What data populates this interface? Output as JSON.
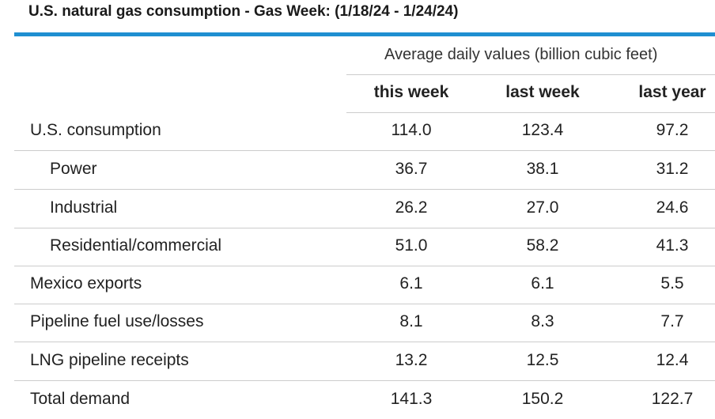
{
  "title": "U.S. natural gas consumption - Gas Week: (1/18/24 - 1/24/24)",
  "units_label": "Average daily values (billion cubic feet)",
  "columns": [
    "this week",
    "last week",
    "last year"
  ],
  "rows": [
    {
      "label": "U.S. consumption",
      "indent": false,
      "values": [
        "114.0",
        "123.4",
        "97.2"
      ]
    },
    {
      "label": "Power",
      "indent": true,
      "values": [
        "36.7",
        "38.1",
        "31.2"
      ]
    },
    {
      "label": "Industrial",
      "indent": true,
      "values": [
        "26.2",
        "27.0",
        "24.6"
      ]
    },
    {
      "label": "Residential/commercial",
      "indent": true,
      "values": [
        "51.0",
        "58.2",
        "41.3"
      ]
    },
    {
      "label": "Mexico exports",
      "indent": false,
      "values": [
        "6.1",
        "6.1",
        "5.5"
      ]
    },
    {
      "label": "Pipeline fuel use/losses",
      "indent": false,
      "values": [
        "8.1",
        "8.3",
        "7.7"
      ]
    },
    {
      "label": "LNG pipeline receipts",
      "indent": false,
      "values": [
        "13.2",
        "12.5",
        "12.4"
      ]
    },
    {
      "label": "Total demand",
      "indent": false,
      "values": [
        "141.3",
        "150.2",
        "122.7"
      ]
    }
  ],
  "colors": {
    "accent": "#1f8fd1",
    "rule": "#cccccc"
  }
}
